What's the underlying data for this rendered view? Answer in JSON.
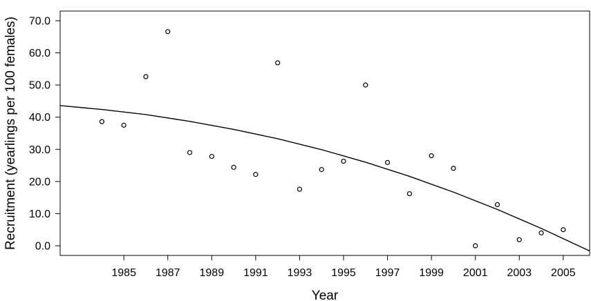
{
  "chart_data": {
    "type": "scatter",
    "xlabel": "Year",
    "ylabel": "Recruitment (yearlings per 100 females)",
    "xlim": [
      1982.1,
      2006.2
    ],
    "ylim": [
      -3,
      73
    ],
    "x_ticks": [
      1985,
      1987,
      1989,
      1991,
      1993,
      1995,
      1997,
      1999,
      2001,
      2003,
      2005
    ],
    "x_tick_labels": [
      "1985",
      "1987",
      "1989",
      "1991",
      "1993",
      "1995",
      "1997",
      "1999",
      "2001",
      "2003",
      "2005"
    ],
    "y_ticks": [
      0,
      10,
      20,
      30,
      40,
      50,
      60,
      70
    ],
    "y_tick_labels": [
      "0.0",
      "10.0",
      "20.0",
      "30.0",
      "40.0",
      "50.0",
      "60.0",
      "70.0"
    ],
    "grid": false,
    "series": [
      {
        "marker": "open-circle",
        "x": [
          1984,
          1985,
          1986,
          1987,
          1988,
          1989,
          1990,
          1991,
          1992,
          1993,
          1994,
          1995,
          1996,
          1997,
          1998,
          1999,
          2000,
          2001,
          2002,
          2003,
          2004,
          2005
        ],
        "y": [
          38.6,
          37.5,
          52.6,
          66.6,
          29.0,
          27.8,
          24.4,
          22.2,
          56.9,
          17.6,
          23.7,
          26.3,
          50.0,
          25.9,
          16.2,
          28.0,
          24.1,
          0.0,
          12.8,
          1.9,
          4.0,
          5.0
        ]
      }
    ],
    "trend_line": {
      "type": "quadratic",
      "x": [
        1982.1,
        1984,
        1986,
        1988,
        1990,
        1992,
        1994,
        1996,
        1998,
        2000,
        2002,
        2004,
        2006.2
      ],
      "y": [
        43.6,
        42.4,
        40.8,
        38.7,
        36.2,
        33.3,
        29.9,
        26.0,
        21.6,
        16.7,
        11.3,
        5.4,
        -1.6
      ]
    }
  }
}
